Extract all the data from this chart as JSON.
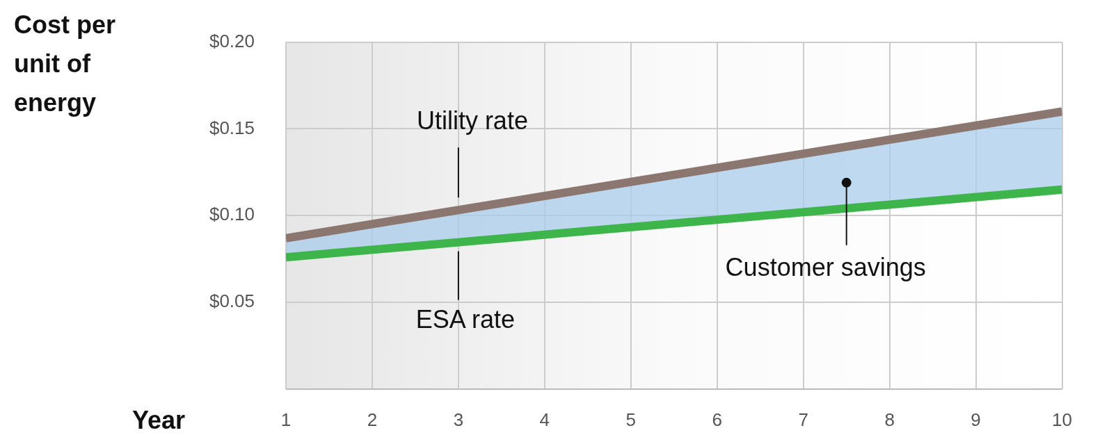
{
  "chart_data": {
    "type": "line",
    "xlabel": "Year",
    "ylabel": "Cost per unit of energy",
    "x": [
      1,
      10
    ],
    "xlim": [
      1,
      10
    ],
    "xticks": [
      1,
      2,
      3,
      4,
      5,
      6,
      7,
      8,
      9,
      10
    ],
    "ylim": [
      0,
      0.2
    ],
    "yticks": [
      {
        "value": 0,
        "label": null
      },
      {
        "value": 0.05,
        "label": "$0.05"
      },
      {
        "value": 0.1,
        "label": "$0.10"
      },
      {
        "value": 0.15,
        "label": "$0.15"
      },
      {
        "value": 0.2,
        "label": "$0.20"
      }
    ],
    "grid": true,
    "legend": false,
    "marker": "none",
    "line_style": "solid",
    "annotations": [
      {
        "text": "Customer savings",
        "x": 7.5,
        "y": 0.119
      }
    ],
    "series": [
      {
        "name": "Utility rate",
        "color": "#8b7670",
        "values": [
          0.087,
          0.16
        ]
      },
      {
        "name": "ESA rate",
        "color": "#3db54a",
        "values": [
          0.076,
          0.115
        ]
      }
    ]
  }
}
